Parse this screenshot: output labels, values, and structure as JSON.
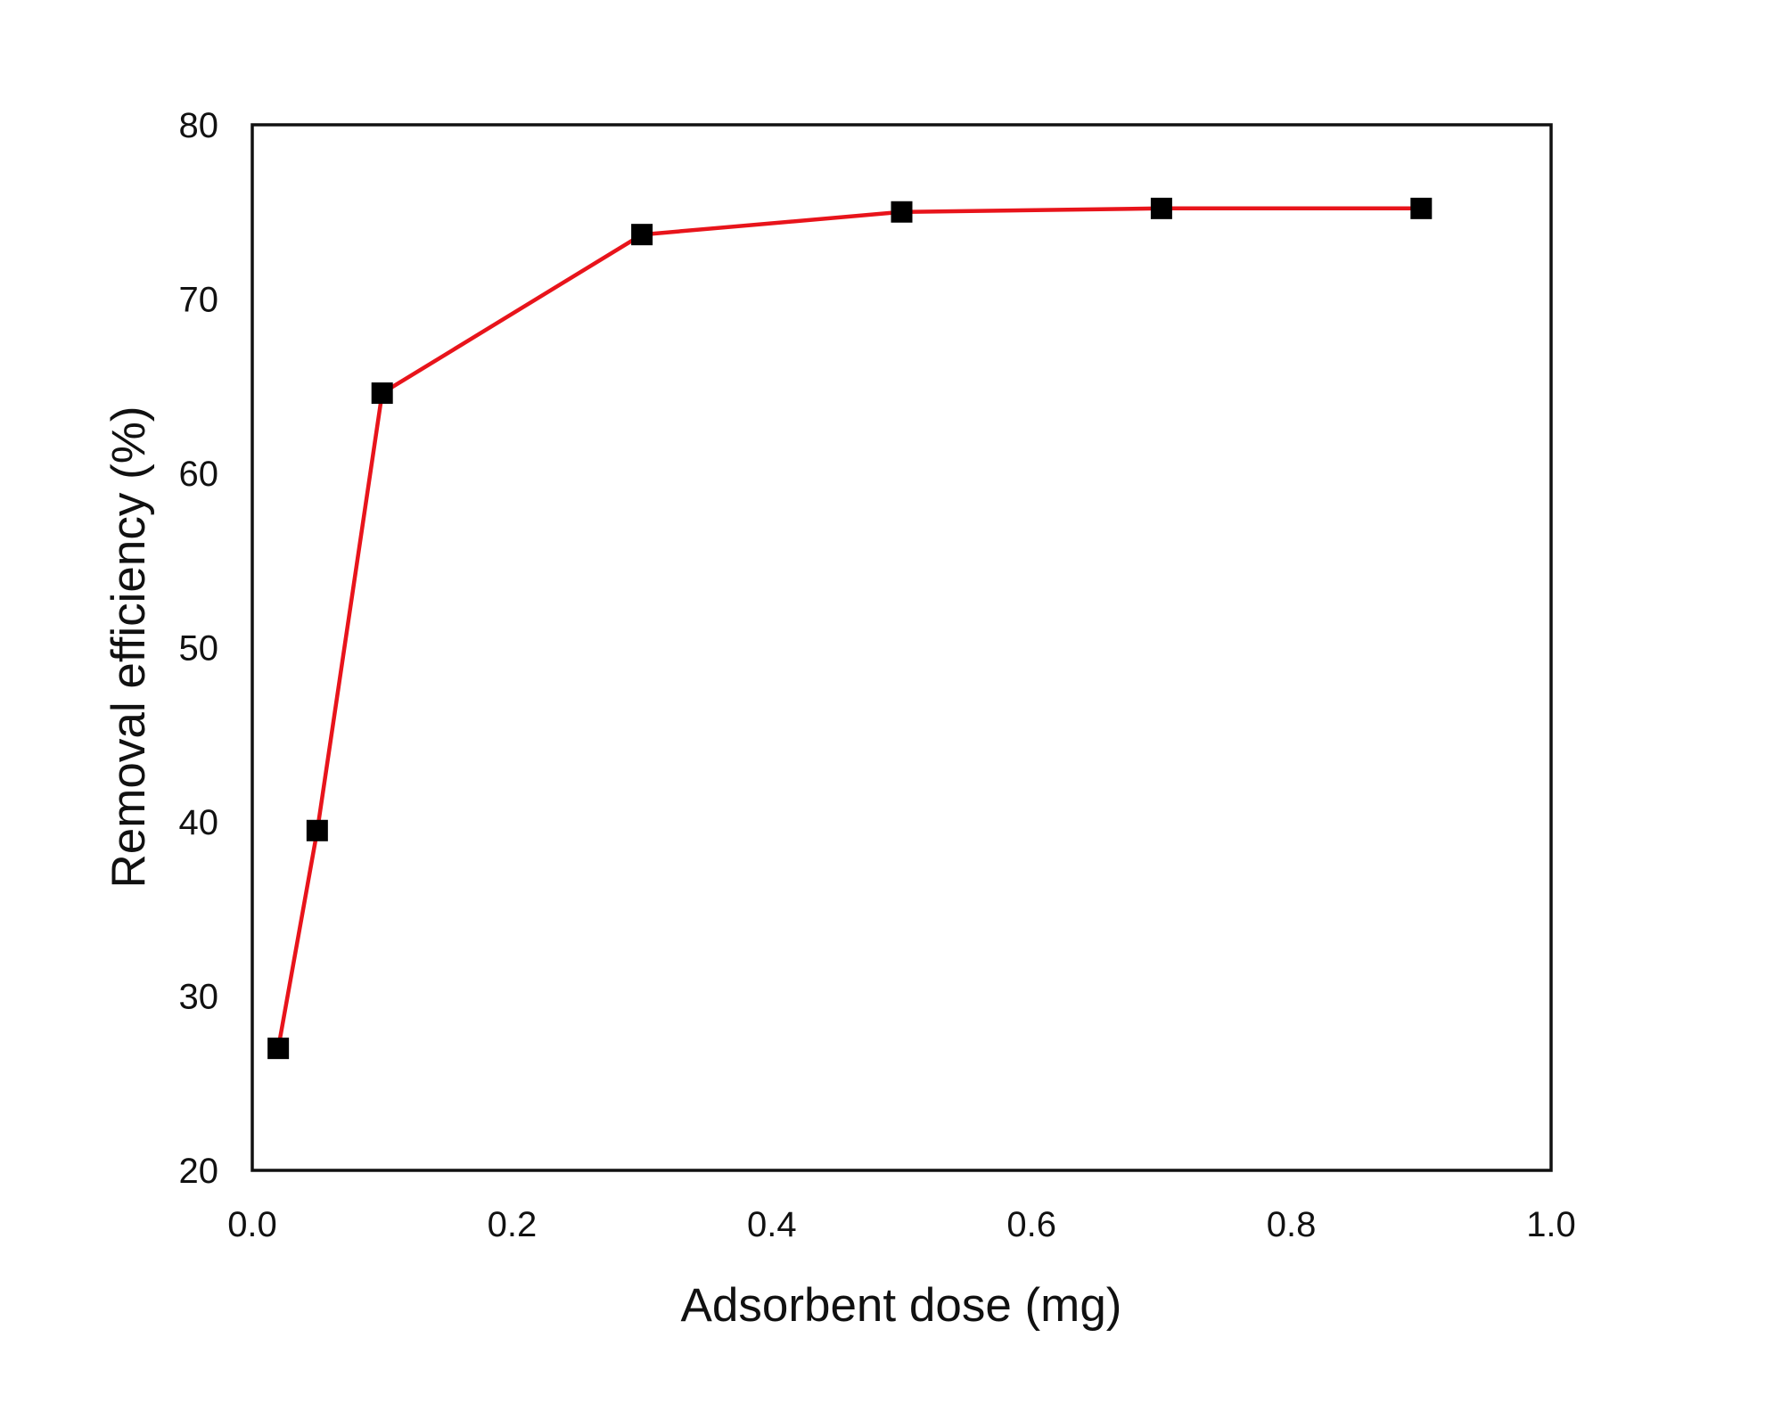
{
  "chart_data": {
    "type": "line",
    "title": "",
    "xlabel": "Adsorbent dose (mg)",
    "ylabel": "Removal efficiency (%)",
    "xlim": [
      0.0,
      1.0
    ],
    "ylim": [
      20,
      80
    ],
    "x_ticks": [
      "0.0",
      "0.2",
      "0.4",
      "0.6",
      "0.8",
      "1.0"
    ],
    "y_ticks": [
      "20",
      "30",
      "40",
      "50",
      "60",
      "70",
      "80"
    ],
    "grid": false,
    "legend": "none",
    "series": [
      {
        "x": [
          0.02,
          0.05,
          0.1,
          0.3,
          0.5,
          0.7,
          0.9
        ],
        "y": [
          27.0,
          39.5,
          64.6,
          73.7,
          75.0,
          75.2,
          75.2
        ],
        "line_color": "#e8141b",
        "marker": "square",
        "marker_color": "#000000"
      }
    ]
  }
}
